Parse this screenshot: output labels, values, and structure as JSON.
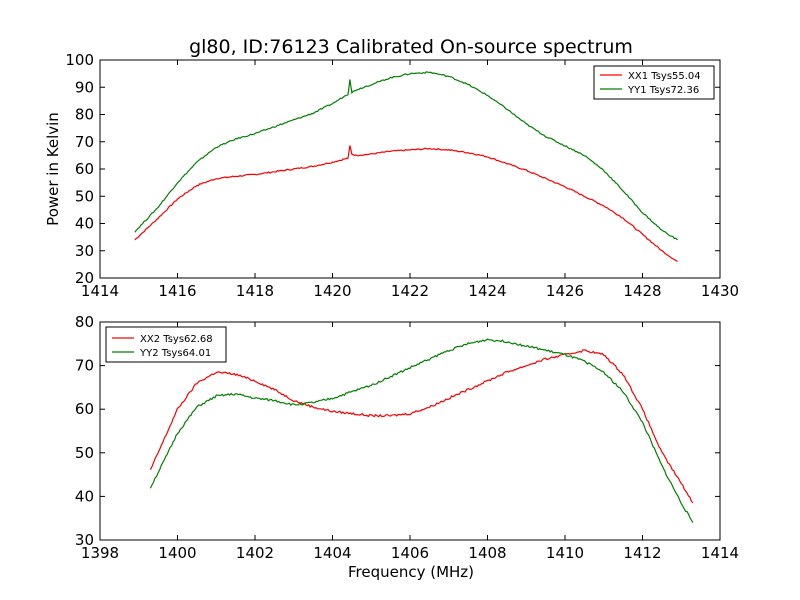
{
  "chart_data": [
    {
      "type": "line",
      "title": "gl80, ID:76123 Calibrated On-source spectrum",
      "xlabel": "",
      "ylabel": "Power in Kelvin",
      "xlim": [
        1414,
        1430
      ],
      "ylim": [
        20,
        100
      ],
      "xticks": [
        "1414",
        "1416",
        "1418",
        "1420",
        "1422",
        "1424",
        "1426",
        "1428",
        "1430"
      ],
      "yticks": [
        "20",
        "30",
        "40",
        "50",
        "60",
        "70",
        "80",
        "90",
        "100"
      ],
      "legend_position": "top-right",
      "series": [
        {
          "name": "XX1 Tsys55.04",
          "color": "#ff0000",
          "x": [
            1414.9,
            1415.5,
            1416.0,
            1416.5,
            1417.0,
            1417.5,
            1418.0,
            1418.5,
            1419.0,
            1419.5,
            1420.0,
            1420.4,
            1420.45,
            1420.5,
            1420.6,
            1421.0,
            1421.5,
            1422.0,
            1422.5,
            1423.0,
            1423.5,
            1424.0,
            1424.5,
            1425.0,
            1425.5,
            1426.0,
            1426.5,
            1427.0,
            1427.5,
            1428.0,
            1428.5,
            1428.9
          ],
          "y": [
            34.0,
            42.0,
            49.0,
            54.0,
            56.5,
            57.3,
            58.0,
            59.0,
            60.0,
            61.0,
            62.5,
            64.0,
            68.5,
            65.5,
            65.0,
            65.5,
            66.5,
            67.0,
            67.5,
            67.0,
            66.0,
            64.5,
            62.0,
            59.5,
            56.5,
            53.5,
            50.0,
            46.5,
            42.0,
            36.0,
            30.0,
            26.0
          ]
        },
        {
          "name": "YY1 Tsys72.36",
          "color": "#008000",
          "x": [
            1414.9,
            1415.5,
            1416.0,
            1416.5,
            1417.0,
            1417.5,
            1418.0,
            1418.5,
            1419.0,
            1419.5,
            1420.0,
            1420.4,
            1420.45,
            1420.5,
            1420.6,
            1421.0,
            1421.5,
            1422.0,
            1422.5,
            1423.0,
            1423.5,
            1424.0,
            1424.5,
            1425.0,
            1425.5,
            1426.0,
            1426.5,
            1427.0,
            1427.5,
            1428.0,
            1428.5,
            1428.9
          ],
          "y": [
            37.0,
            46.0,
            55.0,
            62.5,
            68.0,
            71.0,
            73.0,
            75.5,
            78.0,
            80.5,
            84.0,
            87.5,
            93.0,
            88.0,
            89.0,
            91.0,
            93.5,
            95.0,
            95.5,
            94.0,
            91.0,
            87.0,
            82.0,
            76.5,
            72.0,
            68.5,
            65.0,
            59.5,
            52.0,
            44.0,
            37.5,
            34.0
          ]
        }
      ]
    },
    {
      "type": "line",
      "title": "",
      "xlabel": "Frequency (MHz)",
      "ylabel": "",
      "xlim": [
        1398,
        1414
      ],
      "ylim": [
        30,
        80
      ],
      "xticks": [
        "1398",
        "1400",
        "1402",
        "1404",
        "1406",
        "1408",
        "1410",
        "1412",
        "1414"
      ],
      "yticks": [
        "30",
        "40",
        "50",
        "60",
        "70",
        "80"
      ],
      "legend_position": "top-left",
      "series": [
        {
          "name": "XX2 Tsys62.68",
          "color": "#ff0000",
          "x": [
            1399.3,
            1399.7,
            1400.0,
            1400.5,
            1401.0,
            1401.5,
            1402.0,
            1402.5,
            1403.0,
            1403.5,
            1404.0,
            1404.5,
            1405.0,
            1405.5,
            1406.0,
            1406.5,
            1407.0,
            1407.5,
            1408.0,
            1408.5,
            1409.0,
            1409.5,
            1410.0,
            1410.5,
            1411.0,
            1411.5,
            1412.0,
            1412.5,
            1413.0,
            1413.3
          ],
          "y": [
            46.0,
            54.0,
            60.0,
            66.0,
            68.5,
            68.0,
            66.5,
            64.5,
            62.0,
            60.5,
            59.5,
            59.0,
            58.5,
            58.5,
            59.0,
            60.5,
            62.5,
            64.5,
            66.5,
            68.5,
            70.0,
            71.5,
            72.5,
            73.5,
            72.5,
            68.0,
            60.0,
            50.0,
            43.0,
            38.5
          ]
        },
        {
          "name": "YY2 Tsys64.01",
          "color": "#008000",
          "x": [
            1399.3,
            1399.7,
            1400.0,
            1400.5,
            1401.0,
            1401.5,
            1402.0,
            1402.5,
            1403.0,
            1403.5,
            1404.0,
            1404.5,
            1405.0,
            1405.5,
            1406.0,
            1406.5,
            1407.0,
            1407.5,
            1408.0,
            1408.5,
            1409.0,
            1409.5,
            1410.0,
            1410.5,
            1411.0,
            1411.5,
            1412.0,
            1412.5,
            1413.0,
            1413.3
          ],
          "y": [
            42.0,
            49.0,
            54.5,
            60.5,
            63.0,
            63.5,
            62.5,
            62.0,
            61.0,
            61.5,
            62.5,
            64.0,
            65.5,
            67.5,
            69.5,
            71.5,
            73.5,
            75.0,
            76.0,
            75.5,
            74.5,
            73.5,
            72.5,
            71.0,
            68.5,
            64.0,
            57.0,
            47.0,
            38.5,
            34.0
          ]
        }
      ]
    }
  ]
}
